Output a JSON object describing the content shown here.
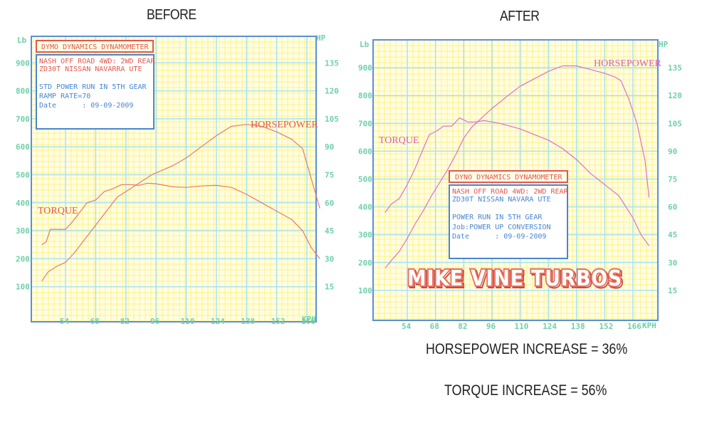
{
  "titles": {
    "before": "BEFORE",
    "after": "AFTER"
  },
  "summary": {
    "horsepower_increase": "HORSEPOWER INCREASE = 36%",
    "torque_increase": "TORQUE INCREASE = 56%"
  },
  "colors": {
    "grid_minor": "#fff27a",
    "grid_major": "#a8e4f0",
    "frame": "#5b8fd8",
    "axis_text": "#6fd0a8",
    "before_curves": "#e87a6a",
    "after_curves": "#e070c8",
    "info_red": "#e4584c",
    "info_blue": "#4a86d0",
    "logo": "#ec6c5c"
  },
  "before_panel": {
    "header": "DYMO DYNAMICS DYNAMOMETER",
    "line1": "NASH OFF ROAD 4WD: 2WD REAR",
    "line2": "ZD30T NISSAN NAVARRA UTE",
    "line3": "STD POWER RUN IN 5TH GEAR",
    "line4": "RAMP RATE=70",
    "line5": "Date      : 09-09-2009",
    "torque_label": "TORQUE",
    "hp_label": "HORSEPOWER"
  },
  "after_panel": {
    "header": "DYNO DYNAMICS DYNAMOMETER",
    "line1": "NASH OFF ROAD 4WD: 2WD REAR",
    "line2": "ZD30T NISSAN NAVARA UTE",
    "line3": "POWER RUN IN 5TH GEAR",
    "line4": "Job:POWER UP CONVERSION",
    "line5": "Date      : 09-09-2009",
    "torque_label": "TORQUE",
    "hp_label": "HORSEPOWER",
    "logo": "MIKE VINE TURBOS"
  },
  "chart_data": [
    {
      "type": "line",
      "title": "BEFORE",
      "xlabel": "KPH",
      "ylabel": "Lb",
      "y2label": "HP",
      "x_ticks": [
        54,
        68,
        82,
        96,
        110,
        124,
        138,
        152,
        166
      ],
      "y_ticks": [
        100,
        200,
        300,
        400,
        500,
        600,
        700,
        800,
        900
      ],
      "y2_ticks": [
        15,
        30,
        45,
        60,
        75,
        90,
        105,
        120,
        135
      ],
      "xlim": [
        40,
        176
      ],
      "ylim": [
        0,
        1000
      ],
      "y2lim": [
        0,
        150
      ],
      "grid": true,
      "series": [
        {
          "name": "TORQUE (Lb)",
          "x": [
            43,
            45,
            47,
            50,
            54,
            57,
            60,
            64,
            68,
            72,
            76,
            80,
            84,
            88,
            92,
            96,
            100,
            104,
            110,
            117,
            124,
            131,
            138,
            145,
            152,
            159,
            164,
            168,
            172
          ],
          "values": [
            250,
            260,
            305,
            305,
            305,
            330,
            360,
            400,
            410,
            440,
            450,
            465,
            465,
            462,
            470,
            468,
            462,
            457,
            455,
            460,
            462,
            455,
            430,
            400,
            370,
            340,
            300,
            240,
            200
          ]
        },
        {
          "name": "HORSEPOWER (HP)",
          "x": [
            43,
            46,
            50,
            54,
            58,
            62,
            66,
            70,
            74,
            78,
            82,
            86,
            90,
            94,
            98,
            104,
            110,
            117,
            124,
            131,
            138,
            145,
            152,
            159,
            164,
            168,
            172
          ],
          "values": [
            18,
            23,
            26,
            28,
            33,
            39,
            45,
            51,
            57,
            63,
            66,
            69,
            72,
            75,
            77,
            80,
            84,
            90,
            96,
            101,
            102,
            101,
            98,
            94,
            89,
            73,
            57
          ]
        }
      ]
    },
    {
      "type": "line",
      "title": "AFTER",
      "xlabel": "KPH",
      "ylabel": "Lb",
      "y2label": "HP",
      "x_ticks": [
        54,
        68,
        82,
        96,
        110,
        124,
        138,
        152,
        166
      ],
      "y_ticks": [
        100,
        200,
        300,
        400,
        500,
        600,
        700,
        800,
        900
      ],
      "y2_ticks": [
        15,
        30,
        45,
        60,
        75,
        90,
        105,
        120,
        135
      ],
      "xlim": [
        40,
        176
      ],
      "ylim": [
        0,
        1000
      ],
      "y2lim": [
        0,
        150
      ],
      "grid": true,
      "series": [
        {
          "name": "TORQUE (Lb)",
          "x": [
            43,
            46,
            50,
            54,
            58,
            62,
            65,
            68,
            72,
            76,
            80,
            84,
            88,
            92,
            96,
            100,
            110,
            117,
            124,
            131,
            138,
            145,
            152,
            159,
            166,
            170,
            174
          ],
          "values": [
            380,
            410,
            430,
            480,
            540,
            610,
            660,
            670,
            690,
            690,
            720,
            705,
            705,
            710,
            705,
            700,
            680,
            660,
            640,
            610,
            570,
            520,
            480,
            440,
            360,
            300,
            260
          ]
        },
        {
          "name": "HORSEPOWER (HP)",
          "x": [
            43,
            46,
            50,
            54,
            58,
            62,
            66,
            70,
            74,
            78,
            82,
            86,
            90,
            96,
            104,
            110,
            117,
            124,
            131,
            138,
            145,
            152,
            157,
            160,
            164,
            168,
            172,
            174
          ],
          "values": [
            27,
            31,
            36,
            43,
            51,
            58,
            66,
            73,
            80,
            88,
            97,
            103,
            107,
            113,
            120,
            125,
            129,
            133,
            136,
            136,
            134,
            132,
            130,
            128,
            118,
            105,
            85,
            65
          ]
        }
      ]
    }
  ]
}
